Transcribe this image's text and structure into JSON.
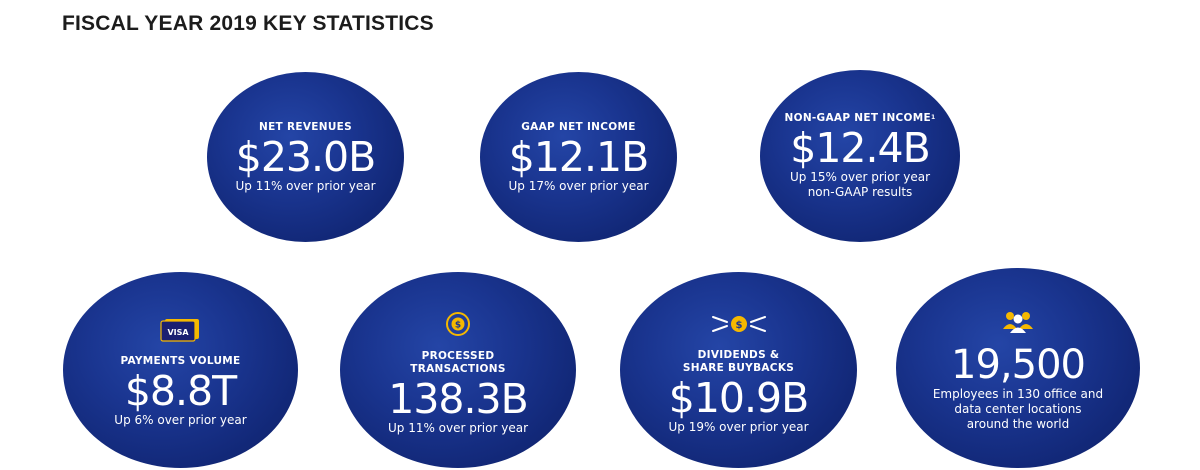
{
  "page": {
    "title": "FISCAL YEAR 2019 KEY STATISTICS"
  },
  "colors": {
    "circle_fill": "#1a3590",
    "circle_fill_dark": "#0d1f63",
    "icon_gold": "#f5b800",
    "text_white": "#ffffff"
  },
  "stats": [
    {
      "label": "NET REVENUES",
      "value": "$23.0B",
      "sub": "Up 11% over prior year"
    },
    {
      "label": "GAAP NET INCOME",
      "value": "$12.1B",
      "sub": "Up 17% over prior year"
    },
    {
      "label": "NON-GAAP NET INCOME",
      "footnote": "1",
      "value": "$12.4B",
      "sub": "Up 15% over prior year\nnon-GAAP results"
    },
    {
      "icon": "visa-card-icon",
      "icon_text": "VISA",
      "label": "PAYMENTS VOLUME",
      "value": "$8.8T",
      "sub": "Up 6% over prior year"
    },
    {
      "icon": "coin-cycle-icon",
      "label": "PROCESSED\nTRANSACTIONS",
      "value": "138.3B",
      "sub": "Up 11% over prior year"
    },
    {
      "icon": "coin-arrows-icon",
      "label": "DIVIDENDS &\nSHARE BUYBACKS",
      "value": "$10.9B",
      "sub": "Up 19% over prior year"
    },
    {
      "icon": "people-icon",
      "value": "19,500",
      "sub": "Employees in 130 office and\ndata center locations\naround the world"
    }
  ]
}
